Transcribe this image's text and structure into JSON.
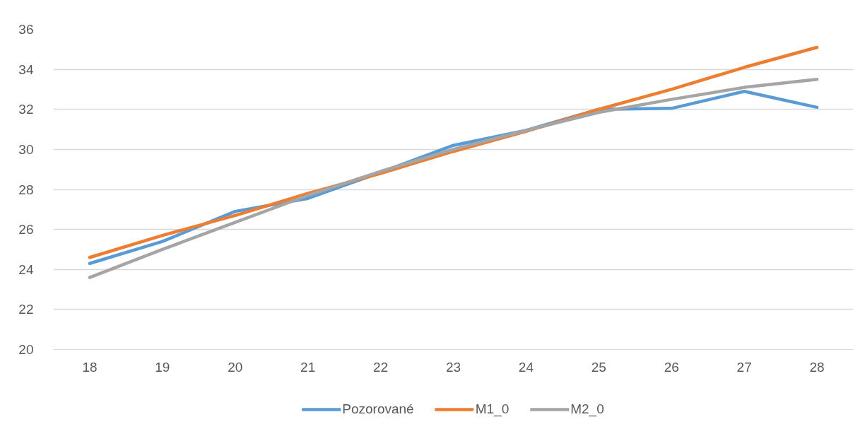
{
  "chart_data": {
    "type": "line",
    "categories": [
      "18",
      "19",
      "20",
      "21",
      "22",
      "23",
      "24",
      "25",
      "26",
      "27",
      "28"
    ],
    "series": [
      {
        "name": "Pozorované",
        "color": "#5b9bd5",
        "values": [
          24.3,
          25.4,
          26.9,
          27.55,
          28.85,
          30.2,
          30.95,
          32.0,
          32.05,
          32.9,
          32.1
        ]
      },
      {
        "name": "M1_0",
        "color": "#ed7d31",
        "values": [
          24.6,
          25.7,
          26.7,
          27.8,
          28.8,
          29.9,
          30.9,
          32.0,
          33.0,
          34.1,
          35.1
        ]
      },
      {
        "name": "M2_0",
        "color": "#a5a5a5",
        "values": [
          23.6,
          25.0,
          26.35,
          27.7,
          28.9,
          30.0,
          30.95,
          31.85,
          32.5,
          33.1,
          33.5
        ]
      }
    ],
    "ylim": [
      20,
      36
    ],
    "yticks": [
      20,
      22,
      24,
      26,
      28,
      30,
      32,
      34,
      36
    ],
    "grid": "y",
    "legend": "bottom"
  }
}
